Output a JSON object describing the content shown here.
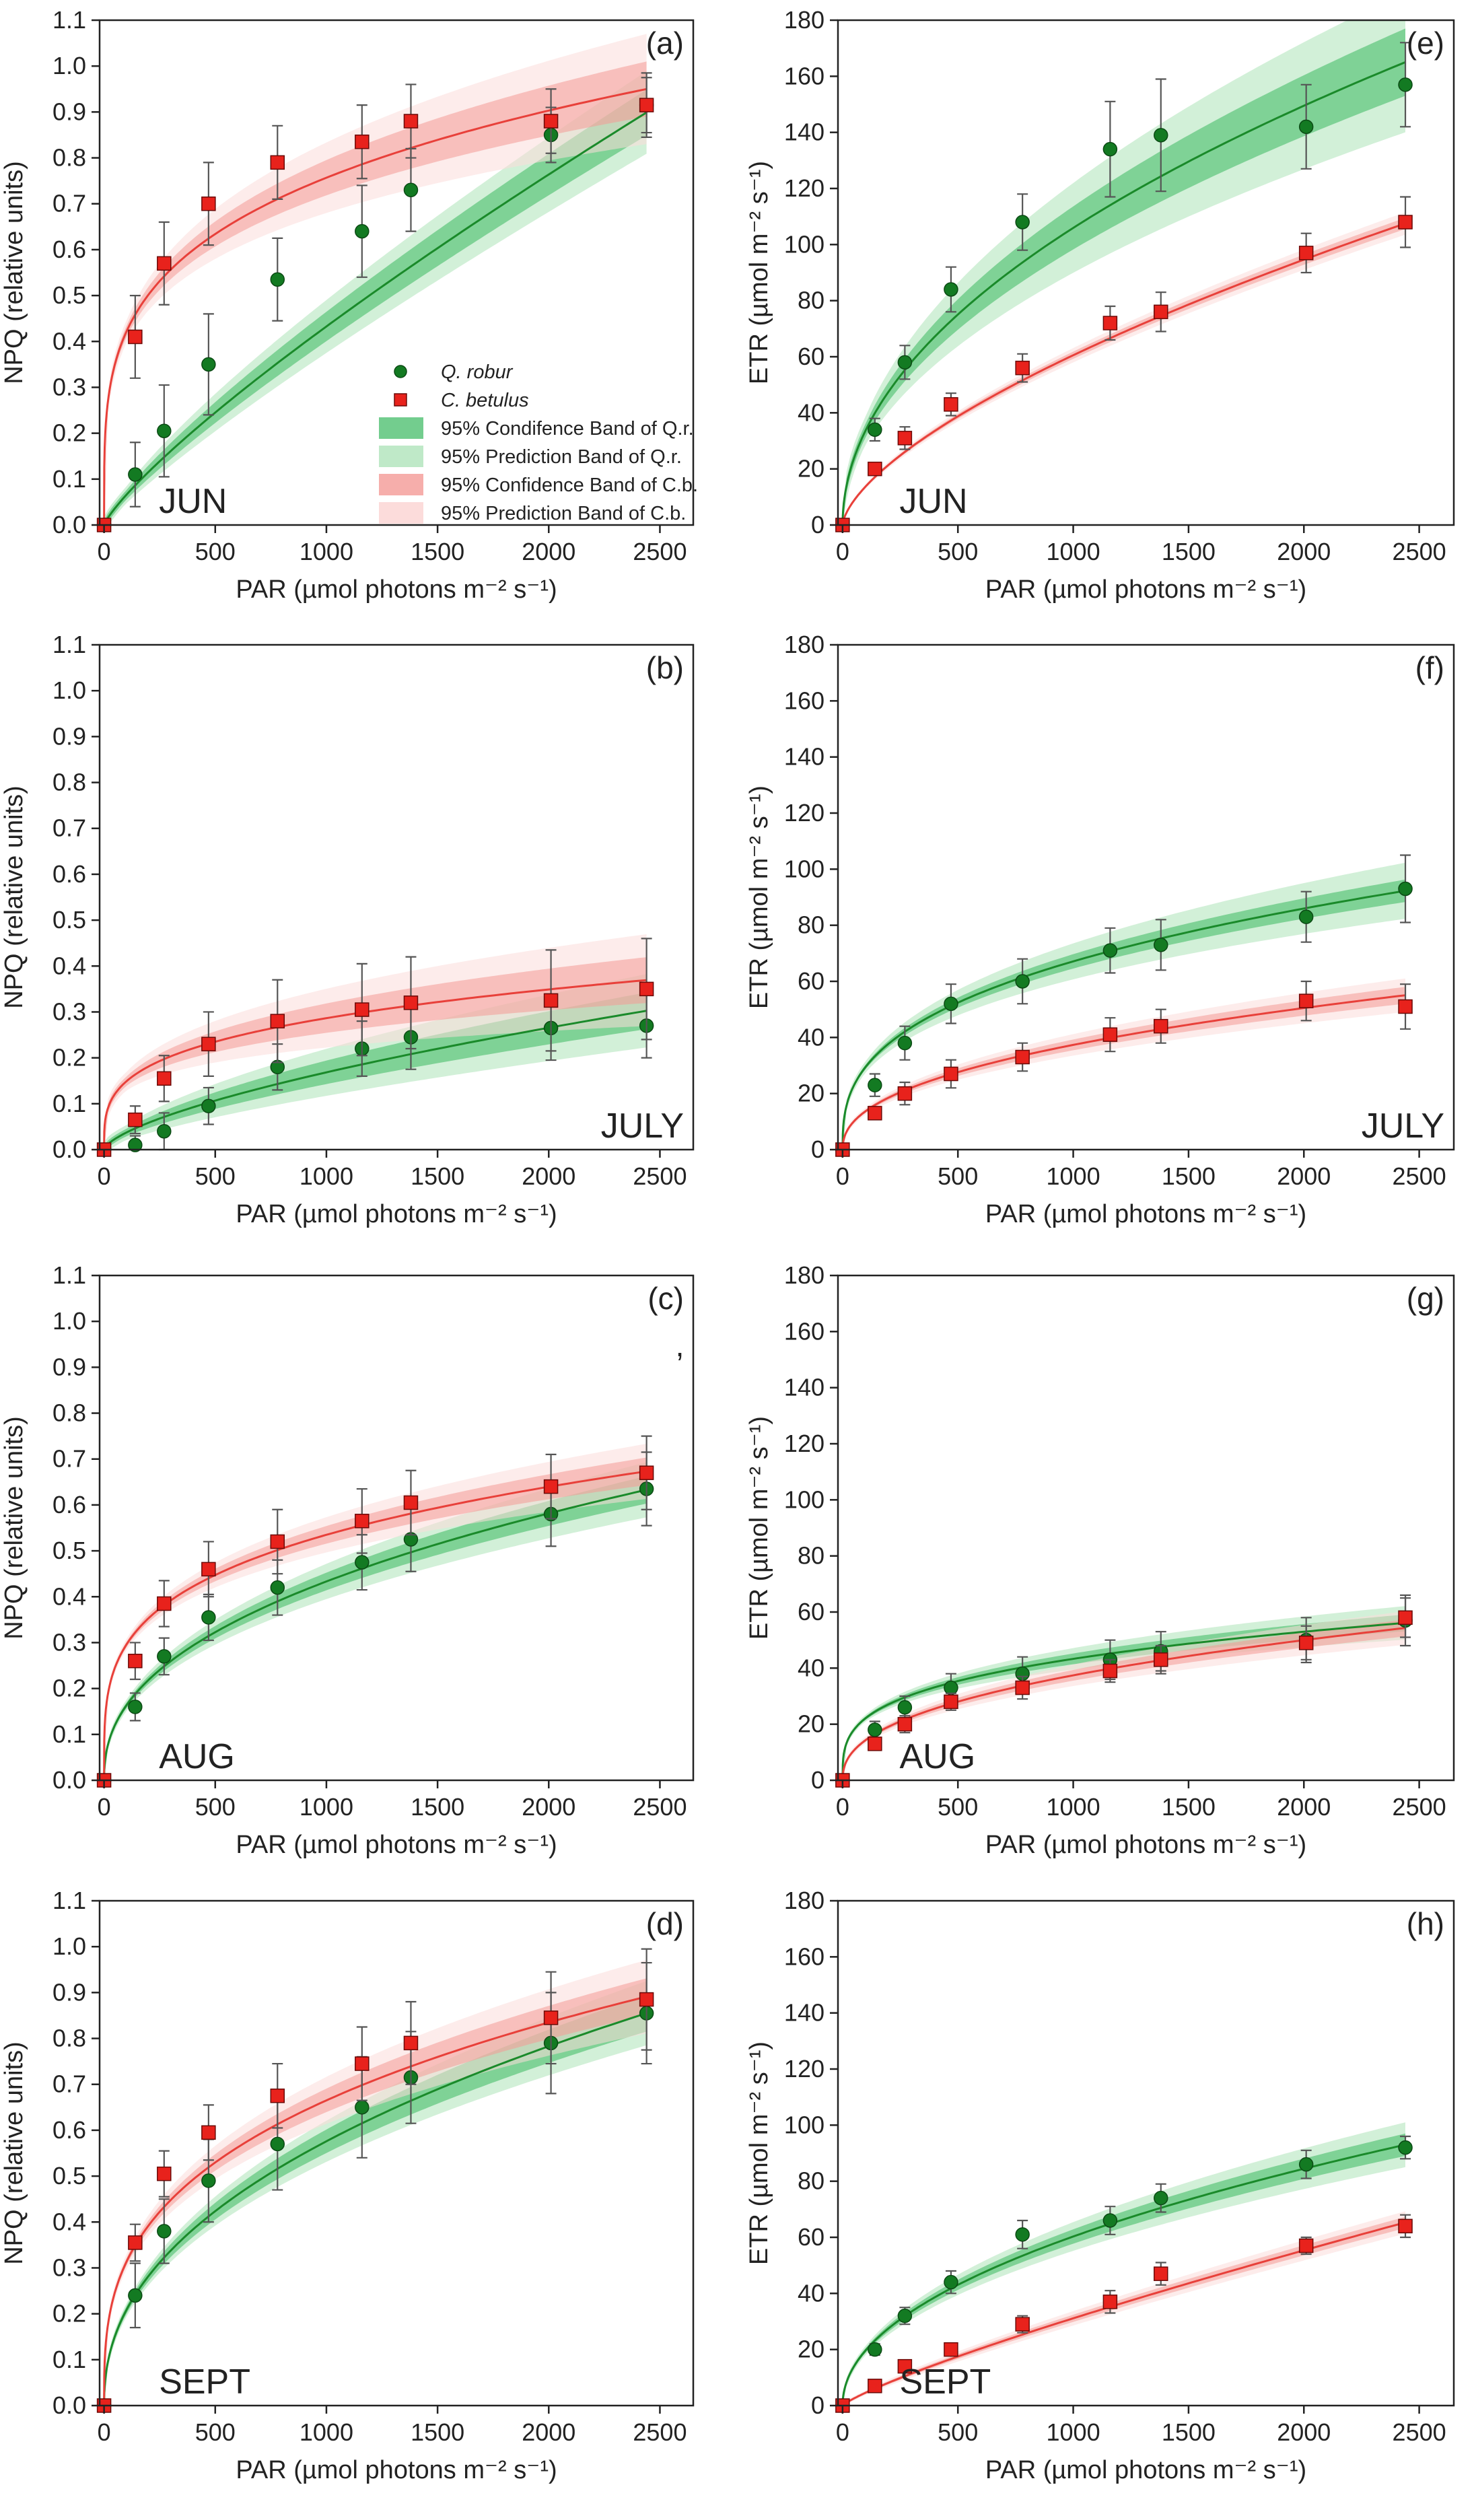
{
  "figure": {
    "colors": {
      "qr_line": "#1a8a2a",
      "qr_marker": "#137a22",
      "qr_conf": "#5bc47a",
      "qr_pred": "#bfe9c8",
      "cb_line": "#e8403a",
      "cb_marker": "#e8221c",
      "cb_conf": "#f49a96",
      "cb_pred": "#fcdcdb",
      "error_bar": "#555555"
    },
    "legend": {
      "series_qr": "Q. robur",
      "series_cb": "C. betulus",
      "band_qr_conf": "95% Condifence Band of Q.r.",
      "band_qr_pred": "95% Prediction Band of Q.r.",
      "band_cb_conf": "95% Confidence Band of C.b.",
      "band_cb_pred": "95% Prediction Band of C.b."
    },
    "stray_mark": ","
  },
  "chart_data": [
    {
      "type": "scatter",
      "id": "a",
      "letter": "(a)",
      "month": "JUN",
      "ylabel": "NPQ (relative units)",
      "xlabel": "PAR (µmol photons m⁻² s⁻¹)",
      "ylim": [
        0,
        1.1
      ],
      "yticks": [
        0,
        0.1,
        0.2,
        0.3,
        0.4,
        0.5,
        0.6,
        0.7,
        0.8,
        0.9,
        1.0,
        1.1
      ],
      "ytick_labels": [
        "0.0",
        "0.1",
        "0.2",
        "0.3",
        "0.4",
        "0.5",
        "0.6",
        "0.7",
        "0.8",
        "0.9",
        "1.0",
        "1.1"
      ],
      "xlim": [
        -20,
        2650
      ],
      "xticks": [
        0,
        500,
        1000,
        1500,
        2000,
        2500
      ],
      "xtick_labels": [
        "0",
        "500",
        "1000",
        "1500",
        "2000",
        "2500"
      ],
      "x": [
        0,
        140,
        270,
        470,
        780,
        1160,
        1380,
        2010,
        2440
      ],
      "series": [
        {
          "name": "Q. robur",
          "values": [
            0,
            0.11,
            0.205,
            0.35,
            0.535,
            0.64,
            0.73,
            0.85,
            0.915
          ],
          "errors": [
            0,
            0.07,
            0.1,
            0.11,
            0.09,
            0.1,
            0.09,
            0.06,
            0.06
          ],
          "fit": {
            "a": 0.0015,
            "b": 0.82
          },
          "band": {
            "conf": 0.05,
            "pred": 0.09
          }
        },
        {
          "name": "C. betulus",
          "values": [
            0,
            0.41,
            0.57,
            0.7,
            0.79,
            0.835,
            0.88,
            0.88,
            0.915
          ],
          "errors": [
            0,
            0.09,
            0.09,
            0.09,
            0.08,
            0.08,
            0.08,
            0.07,
            0.07
          ],
          "fit": {
            "a": 0.13,
            "b": 0.255
          },
          "band": {
            "conf": 0.06,
            "pred": 0.12
          }
        }
      ],
      "legend": true,
      "month_pos": "bottom-left"
    },
    {
      "type": "scatter",
      "id": "e",
      "letter": "(e)",
      "month": "JUN",
      "ylabel": "ETR (µmol m⁻² s⁻¹)",
      "xlabel": "PAR (µmol photons m⁻² s⁻¹)",
      "ylim": [
        0,
        180
      ],
      "yticks": [
        0,
        20,
        40,
        60,
        80,
        100,
        120,
        140,
        160,
        180
      ],
      "ytick_labels": [
        "0",
        "20",
        "40",
        "60",
        "80",
        "100",
        "120",
        "140",
        "160",
        "180"
      ],
      "xlim": [
        -20,
        2650
      ],
      "xticks": [
        0,
        500,
        1000,
        1500,
        2000,
        2500
      ],
      "xtick_labels": [
        "0",
        "500",
        "1000",
        "1500",
        "2000",
        "2500"
      ],
      "x": [
        0,
        140,
        270,
        470,
        780,
        1160,
        1380,
        2010,
        2440
      ],
      "series": [
        {
          "name": "Q. robur",
          "values": [
            0,
            34,
            58,
            84,
            108,
            134,
            139,
            142,
            157
          ],
          "errors": [
            0,
            4,
            6,
            8,
            10,
            17,
            20,
            15,
            15
          ],
          "fit": {
            "a": 3.42,
            "b": 0.497
          },
          "band": {
            "conf": 12,
            "pred": 25
          }
        },
        {
          "name": "C. betulus",
          "values": [
            0,
            20,
            31,
            43,
            56,
            72,
            76,
            97,
            108
          ],
          "errors": [
            0,
            2,
            4,
            4,
            5,
            6,
            7,
            7,
            9
          ],
          "fit": {
            "a": 0.708,
            "b": 0.644
          },
          "band": {
            "conf": 2,
            "pred": 4
          }
        }
      ],
      "legend": false,
      "month_pos": "bottom-left"
    },
    {
      "type": "scatter",
      "id": "b",
      "letter": "(b)",
      "month": "JULY",
      "ylabel": "NPQ (relative units)",
      "xlabel": "PAR (µmol photons m⁻² s⁻¹)",
      "ylim": [
        0,
        1.1
      ],
      "yticks": [
        0,
        0.1,
        0.2,
        0.3,
        0.4,
        0.5,
        0.6,
        0.7,
        0.8,
        0.9,
        1.0,
        1.1
      ],
      "ytick_labels": [
        "0.0",
        "0.1",
        "0.2",
        "0.3",
        "0.4",
        "0.5",
        "0.6",
        "0.7",
        "0.8",
        "0.9",
        "1.0",
        "1.1"
      ],
      "xlim": [
        -20,
        2650
      ],
      "xticks": [
        0,
        500,
        1000,
        1500,
        2000,
        2500
      ],
      "xtick_labels": [
        "0",
        "500",
        "1000",
        "1500",
        "2000",
        "2500"
      ],
      "x": [
        0,
        140,
        270,
        470,
        780,
        1160,
        1380,
        2010,
        2440
      ],
      "series": [
        {
          "name": "Q. robur",
          "values": [
            0,
            0.01,
            0.04,
            0.095,
            0.18,
            0.22,
            0.245,
            0.265,
            0.27
          ],
          "errors": [
            0,
            0.02,
            0.04,
            0.04,
            0.05,
            0.06,
            0.07,
            0.07,
            0.07
          ],
          "fit": {
            "a": 0.0018,
            "b": 0.657
          },
          "band": {
            "conf": 0.04,
            "pred": 0.08
          }
        },
        {
          "name": "C. betulus",
          "values": [
            0,
            0.065,
            0.155,
            0.23,
            0.28,
            0.305,
            0.32,
            0.325,
            0.35
          ],
          "errors": [
            0,
            0.03,
            0.05,
            0.07,
            0.09,
            0.1,
            0.1,
            0.11,
            0.11
          ],
          "fit": {
            "a": 0.04,
            "b": 0.285
          },
          "band": {
            "conf": 0.05,
            "pred": 0.1
          }
        }
      ],
      "legend": false,
      "month_pos": "bottom-right"
    },
    {
      "type": "scatter",
      "id": "f",
      "letter": "(f)",
      "month": "JULY",
      "ylabel": "ETR (µmol m⁻² s⁻¹)",
      "xlabel": "PAR (µmol photons m⁻² s⁻¹)",
      "ylim": [
        0,
        180
      ],
      "yticks": [
        0,
        20,
        40,
        60,
        80,
        100,
        120,
        140,
        160,
        180
      ],
      "ytick_labels": [
        "0",
        "20",
        "40",
        "60",
        "80",
        "100",
        "120",
        "140",
        "160",
        "180"
      ],
      "xlim": [
        -20,
        2650
      ],
      "xticks": [
        0,
        500,
        1000,
        1500,
        2000,
        2500
      ],
      "xtick_labels": [
        "0",
        "500",
        "1000",
        "1500",
        "2000",
        "2500"
      ],
      "x": [
        0,
        140,
        270,
        470,
        780,
        1160,
        1380,
        2010,
        2440
      ],
      "series": [
        {
          "name": "Q. robur",
          "values": [
            0,
            23,
            38,
            52,
            60,
            71,
            73,
            83,
            93
          ],
          "errors": [
            0,
            4,
            6,
            7,
            8,
            8,
            9,
            9,
            12
          ],
          "fit": {
            "a": 5.7,
            "b": 0.357
          },
          "band": {
            "conf": 4,
            "pred": 10
          }
        },
        {
          "name": "C. betulus",
          "values": [
            0,
            13,
            20,
            27,
            33,
            41,
            44,
            53,
            51
          ],
          "errors": [
            0,
            2,
            4,
            5,
            5,
            6,
            6,
            7,
            8
          ],
          "fit": {
            "a": 1.85,
            "b": 0.435
          },
          "band": {
            "conf": 3,
            "pred": 6
          }
        }
      ],
      "legend": false,
      "month_pos": "bottom-right"
    },
    {
      "type": "scatter",
      "id": "c",
      "letter": "(c)",
      "month": "AUG",
      "ylabel": "NPQ (relative units)",
      "xlabel": "PAR (µmol photons m⁻² s⁻¹)",
      "ylim": [
        0,
        1.1
      ],
      "yticks": [
        0,
        0.1,
        0.2,
        0.3,
        0.4,
        0.5,
        0.6,
        0.7,
        0.8,
        0.9,
        1.0,
        1.1
      ],
      "ytick_labels": [
        "0.0",
        "0.1",
        "0.2",
        "0.3",
        "0.4",
        "0.5",
        "0.6",
        "0.7",
        "0.8",
        "0.9",
        "1.0",
        "1.1"
      ],
      "xlim": [
        -20,
        2650
      ],
      "xticks": [
        0,
        500,
        1000,
        1500,
        2000,
        2500
      ],
      "xtick_labels": [
        "0",
        "500",
        "1000",
        "1500",
        "2000",
        "2500"
      ],
      "x": [
        0,
        140,
        270,
        470,
        780,
        1160,
        1380,
        2010,
        2440
      ],
      "series": [
        {
          "name": "Q. robur",
          "values": [
            0,
            0.16,
            0.27,
            0.355,
            0.42,
            0.475,
            0.525,
            0.58,
            0.635
          ],
          "errors": [
            0,
            0.03,
            0.04,
            0.05,
            0.06,
            0.06,
            0.07,
            0.07,
            0.08
          ],
          "fit": {
            "a": 0.023,
            "b": 0.425
          },
          "band": {
            "conf": 0.03,
            "pred": 0.06
          }
        },
        {
          "name": "C. betulus",
          "values": [
            0,
            0.26,
            0.385,
            0.46,
            0.52,
            0.565,
            0.605,
            0.64,
            0.67
          ],
          "errors": [
            0,
            0.04,
            0.05,
            0.06,
            0.07,
            0.07,
            0.07,
            0.07,
            0.08
          ],
          "fit": {
            "a": 0.09,
            "b": 0.258
          },
          "band": {
            "conf": 0.03,
            "pred": 0.06
          }
        }
      ],
      "legend": false,
      "month_pos": "bottom-left"
    },
    {
      "type": "scatter",
      "id": "g",
      "letter": "(g)",
      "month": "AUG",
      "ylabel": "ETR (µmol m⁻² s⁻¹)",
      "xlabel": "PAR (µmol photons m⁻² s⁻¹)",
      "ylim": [
        0,
        180
      ],
      "yticks": [
        0,
        20,
        40,
        60,
        80,
        100,
        120,
        140,
        160,
        180
      ],
      "ytick_labels": [
        "0",
        "20",
        "40",
        "60",
        "80",
        "100",
        "120",
        "140",
        "160",
        "180"
      ],
      "xlim": [
        -20,
        2650
      ],
      "xticks": [
        0,
        500,
        1000,
        1500,
        2000,
        2500
      ],
      "xtick_labels": [
        "0",
        "500",
        "1000",
        "1500",
        "2000",
        "2500"
      ],
      "x": [
        0,
        140,
        270,
        470,
        780,
        1160,
        1380,
        2010,
        2440
      ],
      "series": [
        {
          "name": "Q. robur",
          "values": [
            0,
            18,
            26,
            33,
            38,
            43,
            46,
            50,
            57
          ],
          "errors": [
            0,
            3,
            4,
            5,
            6,
            7,
            7,
            8,
            9
          ],
          "fit": {
            "a": 5.8,
            "b": 0.291
          },
          "band": {
            "conf": 3,
            "pred": 6
          }
        },
        {
          "name": "C. betulus",
          "values": [
            0,
            13,
            20,
            28,
            33,
            39,
            43,
            49,
            58
          ],
          "errors": [
            0,
            2,
            3,
            3,
            4,
            4,
            5,
            6,
            7
          ],
          "fit": {
            "a": 2.1,
            "b": 0.417
          },
          "band": {
            "conf": 3,
            "pred": 6
          }
        }
      ],
      "legend": false,
      "month_pos": "bottom-left"
    },
    {
      "type": "scatter",
      "id": "d",
      "letter": "(d)",
      "month": "SEPT",
      "ylabel": "NPQ (relative units)",
      "xlabel": "PAR (µmol photons m⁻² s⁻¹)",
      "ylim": [
        0,
        1.1
      ],
      "yticks": [
        0,
        0.1,
        0.2,
        0.3,
        0.4,
        0.5,
        0.6,
        0.7,
        0.8,
        0.9,
        1.0,
        1.1
      ],
      "ytick_labels": [
        "0.0",
        "0.1",
        "0.2",
        "0.3",
        "0.4",
        "0.5",
        "0.6",
        "0.7",
        "0.8",
        "0.9",
        "1.0",
        "1.1"
      ],
      "xlim": [
        -20,
        2650
      ],
      "xticks": [
        0,
        500,
        1000,
        1500,
        2000,
        2500
      ],
      "xtick_labels": [
        "0",
        "500",
        "1000",
        "1500",
        "2000",
        "2500"
      ],
      "x": [
        0,
        140,
        270,
        470,
        780,
        1160,
        1380,
        2010,
        2440
      ],
      "series": [
        {
          "name": "Q. robur",
          "values": [
            0,
            0.24,
            0.38,
            0.49,
            0.57,
            0.65,
            0.715,
            0.79,
            0.855
          ],
          "errors": [
            0,
            0.07,
            0.07,
            0.09,
            0.1,
            0.11,
            0.1,
            0.11,
            0.11
          ],
          "fit": {
            "a": 0.027,
            "b": 0.443
          },
          "band": {
            "conf": 0.04,
            "pred": 0.07
          }
        },
        {
          "name": "C. betulus",
          "values": [
            0,
            0.355,
            0.505,
            0.595,
            0.675,
            0.745,
            0.79,
            0.845,
            0.885
          ],
          "errors": [
            0,
            0.04,
            0.05,
            0.06,
            0.07,
            0.08,
            0.09,
            0.1,
            0.11
          ],
          "fit": {
            "a": 0.069,
            "b": 0.328
          },
          "band": {
            "conf": 0.04,
            "pred": 0.08
          }
        }
      ],
      "legend": false,
      "month_pos": "bottom-left"
    },
    {
      "type": "scatter",
      "id": "h",
      "letter": "(h)",
      "month": "SEPT",
      "ylabel": "ETR (µmol m⁻² s⁻¹)",
      "xlabel": "PAR (µmol photons m⁻² s⁻¹)",
      "ylim": [
        0,
        180
      ],
      "yticks": [
        0,
        20,
        40,
        60,
        80,
        100,
        120,
        140,
        160,
        180
      ],
      "ytick_labels": [
        "0",
        "20",
        "40",
        "60",
        "80",
        "100",
        "120",
        "140",
        "160",
        "180"
      ],
      "xlim": [
        -20,
        2650
      ],
      "xticks": [
        0,
        500,
        1000,
        1500,
        2000,
        2500
      ],
      "xtick_labels": [
        "0",
        "500",
        "1000",
        "1500",
        "2000",
        "2500"
      ],
      "x": [
        0,
        140,
        270,
        470,
        780,
        1160,
        1380,
        2010,
        2440
      ],
      "series": [
        {
          "name": "Q. robur",
          "values": [
            0,
            20,
            32,
            44,
            61,
            66,
            74,
            86,
            92
          ],
          "errors": [
            0,
            2,
            3,
            4,
            5,
            5,
            5,
            5,
            4
          ],
          "fit": {
            "a": 2.1,
            "b": 0.486
          },
          "band": {
            "conf": 4,
            "pred": 8
          }
        },
        {
          "name": "C. betulus",
          "values": [
            0,
            7,
            14,
            20,
            29,
            37,
            47,
            57,
            64
          ],
          "errors": [
            0,
            1,
            2,
            2,
            3,
            4,
            4,
            3,
            4
          ],
          "fit": {
            "a": 0.1,
            "b": 0.831
          },
          "band": {
            "conf": 2,
            "pred": 4
          }
        }
      ],
      "legend": false,
      "month_pos": "bottom-left"
    }
  ]
}
